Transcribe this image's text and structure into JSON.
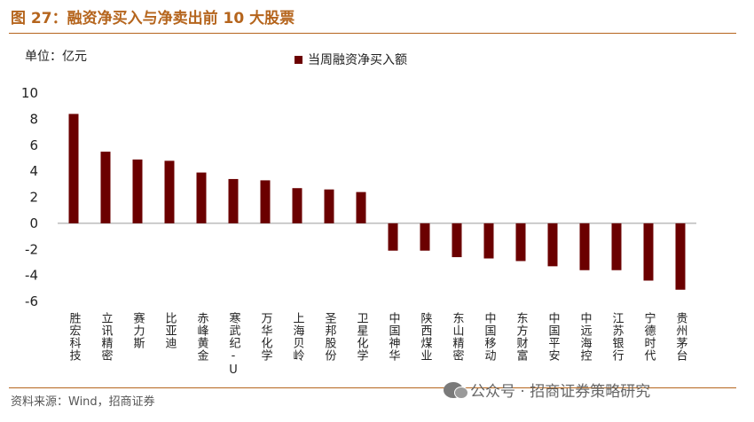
{
  "figure": {
    "title": "图 27：融资净买入与净卖出前 10 大股票",
    "unit_label": "单位：亿元",
    "source": "资料来源：Wind，招商证券",
    "watermark": "公众号 · 招商证券策略研究"
  },
  "colors": {
    "bar": "#6b0000",
    "accent": "#b5651d"
  },
  "chart_data": {
    "type": "bar",
    "title": "图 27：融资净买入与净卖出前 10 大股票",
    "xlabel": "",
    "ylabel": "单位：亿元",
    "ylim": [
      -6,
      10
    ],
    "yticks": [
      10,
      8,
      6,
      4,
      2,
      0,
      -2,
      -4,
      -6
    ],
    "grid": false,
    "legend_position": "top-center",
    "categories": [
      "胜宏科技",
      "立讯精密",
      "赛力斯",
      "比亚迪",
      "赤峰黄金",
      "寒武纪-U",
      "万华化学",
      "上海贝岭",
      "圣邦股份",
      "卫星化学",
      "中国神华",
      "陕西煤业",
      "东山精密",
      "中国移动",
      "东方财富",
      "中国平安",
      "中远海控",
      "江苏银行",
      "宁德时代",
      "贵州茅台"
    ],
    "series": [
      {
        "name": "当周融资净买入额",
        "values": [
          8.4,
          5.5,
          4.9,
          4.8,
          3.9,
          3.4,
          3.3,
          2.7,
          2.6,
          2.4,
          -2.1,
          -2.1,
          -2.6,
          -2.7,
          -2.9,
          -3.3,
          -3.6,
          -3.6,
          -4.4,
          -5.1
        ]
      }
    ]
  }
}
